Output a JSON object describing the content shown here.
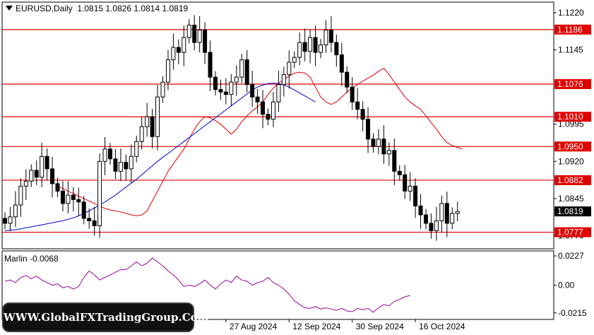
{
  "header": {
    "symbol": "EURUSD,Daily",
    "ohlc": "1.0815 1.0826 1.0814 1.0819"
  },
  "indicator": {
    "label": "Marlin -0.0068",
    "ticks": [
      "0.0227",
      "0.00",
      "-0.0215"
    ]
  },
  "watermark": "WWW.GlobalFXTradingGroup.Com",
  "chart_data": {
    "type": "candlestick",
    "price_ticks": [
      "1.1220",
      "1.1145",
      "1.0995",
      "1.0920",
      "1.0845",
      "1.0770"
    ],
    "ylim": [
      1.0745,
      1.124
    ],
    "x_ticks": [
      {
        "label": "27 Aug 2024",
        "index": 42
      },
      {
        "label": "12 Sep 2024",
        "index": 54
      },
      {
        "label": "30 Sep 2024",
        "index": 66
      },
      {
        "label": "16 Oct 2024",
        "index": 78
      }
    ],
    "levels": [
      {
        "value": 1.1186,
        "label": "1.1186"
      },
      {
        "value": 1.1076,
        "label": "1.1076"
      },
      {
        "value": 1.101,
        "label": "1.1010"
      },
      {
        "value": 1.095,
        "label": "1.0950"
      },
      {
        "value": 1.0882,
        "label": "1.0882"
      },
      {
        "value": 1.0777,
        "label": "1.0777"
      }
    ],
    "current_price": "1.0819",
    "colors": {
      "level": "#e00000",
      "ma_fast": "#e00000",
      "ma_slow": "#0000cc",
      "oscillator": "#990099"
    },
    "closes": [
      1.0795,
      1.0808,
      1.0832,
      1.087,
      1.088,
      1.0902,
      1.0888,
      1.093,
      1.0905,
      1.0875,
      1.086,
      1.0835,
      1.0852,
      1.0843,
      1.0838,
      1.0805,
      1.08,
      1.079,
      1.092,
      1.0945,
      1.0925,
      1.09,
      1.0918,
      1.0905,
      1.093,
      1.096,
      1.099,
      1.101,
      1.097,
      1.105,
      1.108,
      1.1125,
      1.115,
      1.114,
      1.117,
      1.1195,
      1.116,
      1.1185,
      1.114,
      1.109,
      1.1065,
      1.106,
      1.1055,
      1.108,
      1.109,
      1.1125,
      1.1075,
      1.105,
      1.104,
      1.1015,
      1.1005,
      1.104,
      1.1075,
      1.1095,
      1.112,
      1.113,
      1.116,
      1.1142,
      1.117,
      1.114,
      1.1155,
      1.1185,
      1.116,
      1.1135,
      1.11,
      1.107,
      1.104,
      1.1025,
      1.1005,
      1.0965,
      1.095,
      1.0965,
      1.0935,
      1.0942,
      1.09,
      1.0893,
      1.086,
      1.087,
      1.083,
      1.0812,
      1.0795,
      1.078,
      1.08,
      1.0835,
      1.0795,
      1.0815,
      1.0819
    ],
    "ma_fast": [
      1.087,
      1.0865,
      1.086,
      1.0855,
      1.085,
      1.0845,
      1.084,
      1.0835,
      1.083,
      1.0825,
      1.0822,
      1.082,
      1.0818,
      1.0815,
      1.0812,
      1.081,
      1.0812,
      1.082,
      1.084,
      1.086,
      1.088,
      1.09,
      1.0915,
      1.093,
      1.0945,
      1.0965,
      1.0985,
      1.1,
      1.101,
      1.1008,
      1.1002,
      1.0995,
      1.0985,
      1.0975,
      1.0985,
      1.1,
      1.1012,
      1.1022,
      1.103,
      1.104,
      1.1055,
      1.1068,
      1.1078,
      1.1085,
      1.1092,
      1.1098,
      1.11,
      1.1098,
      1.109,
      1.107,
      1.105,
      1.104,
      1.1035,
      1.104,
      1.105,
      1.106,
      1.1068,
      1.1075,
      1.1082,
      1.1088,
      1.1094,
      1.1102,
      1.1108,
      1.1095,
      1.108,
      1.1065,
      1.105,
      1.104,
      1.1032,
      1.1025,
      1.1012,
      1.0998,
      1.0985,
      1.097,
      1.0958,
      1.0952,
      1.0948,
      1.0945
    ],
    "ma_slow": [
      1.078,
      1.0781,
      1.0782,
      1.0784,
      1.0786,
      1.0788,
      1.079,
      1.0792,
      1.0794,
      1.0796,
      1.0798,
      1.08,
      1.0803,
      1.0806,
      1.081,
      1.0815,
      1.082,
      1.0826,
      1.0832,
      1.0838,
      1.0845,
      1.0852,
      1.086,
      1.0868,
      1.0876,
      1.0884,
      1.0893,
      1.0902,
      1.0911,
      1.092,
      1.0928,
      1.0936,
      1.0944,
      1.0952,
      1.096,
      1.0968,
      1.0976,
      1.0984,
      1.0992,
      1.1,
      1.1008,
      1.1016,
      1.1024,
      1.1032,
      1.104,
      1.1048,
      1.1056,
      1.1064,
      1.107,
      1.1074,
      1.1077,
      1.1078,
      1.1077,
      1.1074,
      1.107,
      1.1064,
      1.1058,
      1.1052,
      1.1046,
      1.104
    ],
    "oscillator": [
      0.003,
      0.004,
      0.002,
      0.006,
      0.0075,
      0.005,
      0.007,
      0.004,
      0.002,
      0.0,
      0.001,
      -0.002,
      -0.001,
      -0.003,
      -0.001,
      0.006,
      0.011,
      0.008,
      0.004,
      0.006,
      0.008,
      0.01,
      0.012,
      0.012,
      0.015,
      0.018,
      0.015,
      0.017,
      0.021,
      0.018,
      0.015,
      0.011,
      0.008,
      0.004,
      -0.001,
      0.0,
      -0.001,
      0.001,
      0.004,
      0.0,
      -0.003,
      0.001,
      0.004,
      0.002,
      0.007,
      0.004,
      0.003,
      0.0,
      0.002,
      0.003,
      0.006,
      0.002,
      0.0,
      -0.003,
      -0.007,
      -0.012,
      -0.015,
      -0.0175,
      -0.018,
      -0.0165,
      -0.0185,
      -0.0175,
      -0.0185,
      -0.0195,
      -0.018,
      -0.02,
      -0.0205,
      -0.018,
      -0.019,
      -0.018,
      -0.021,
      -0.0175,
      -0.015,
      -0.016,
      -0.0125,
      -0.011,
      -0.009,
      -0.008
    ],
    "osc_ylim": [
      -0.026,
      0.026
    ]
  }
}
